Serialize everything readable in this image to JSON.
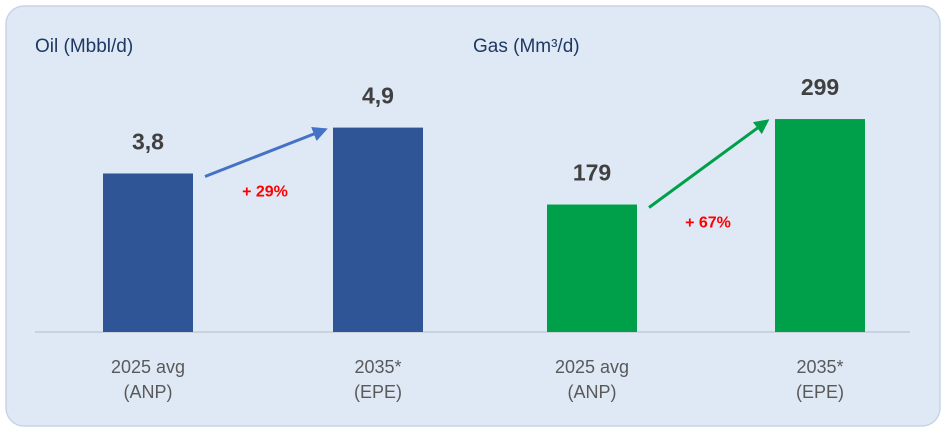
{
  "chart_data": [
    {
      "type": "bar",
      "title": "Oil (Mbbl/d)",
      "categories": [
        [
          "2025 avg",
          "(ANP)"
        ],
        [
          "2035*",
          "(EPE)"
        ]
      ],
      "values": [
        3.8,
        4.9
      ],
      "value_labels": [
        "3,8",
        "4,9"
      ],
      "color": "#2f5597",
      "arrow_color": "#4472c4",
      "annotation": "+ 29%",
      "ylim": [
        0,
        7
      ]
    },
    {
      "type": "bar",
      "title": "Gas (Mm³/d)",
      "categories": [
        [
          "2025 avg",
          "(ANP)"
        ],
        [
          "2035*",
          "(EPE)"
        ]
      ],
      "values": [
        179,
        299
      ],
      "color": "#00a04a",
      "arrow_color": "#00a04a",
      "annotation": "+ 67%",
      "ylim": [
        0,
        410
      ]
    }
  ]
}
